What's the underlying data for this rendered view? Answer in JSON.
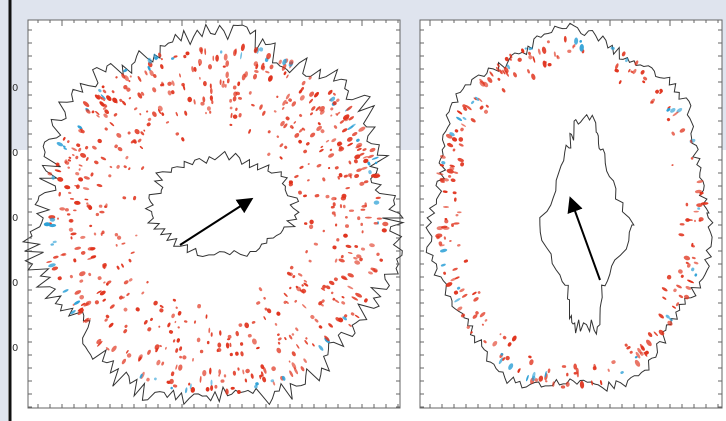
{
  "left_panel": {
    "y_tick_labels": [
      "0",
      "0",
      "0",
      "0",
      "0"
    ]
  }
}
